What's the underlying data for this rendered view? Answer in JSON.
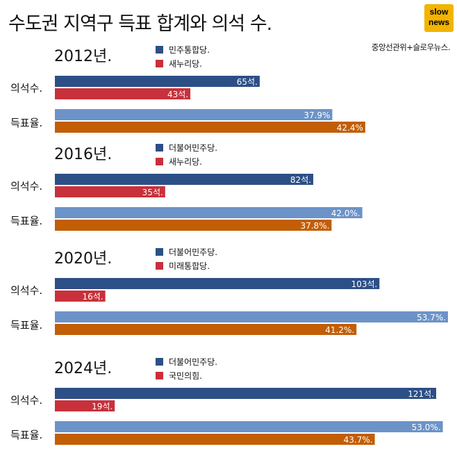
{
  "header": {
    "title": "수도권 지역구 득표 합계와 의석 수.",
    "source": "중앙선관위+슬로우뉴스.",
    "logo_line1": "slow",
    "logo_line2": "news"
  },
  "colors": {
    "seat_party1": "#2c4f86",
    "seat_party2": "#c8313b",
    "vote_party1": "#6c93c8",
    "vote_party2": "#c25e06"
  },
  "chart_data": {
    "type": "bar",
    "orientation": "horizontal",
    "title": "수도권 지역구 득표 합계와 의석 수.",
    "row_labels": [
      "의석수.",
      "득표율."
    ],
    "panels": [
      {
        "year": "2012년.",
        "legend": [
          "민주통합당.",
          "새누리당."
        ],
        "seats": {
          "values": [
            65,
            43
          ],
          "labels": [
            "65석.",
            "43석."
          ]
        },
        "votes": {
          "values": [
            37.9,
            42.4
          ],
          "labels": [
            "37.9%",
            "42.4%"
          ]
        }
      },
      {
        "year": "2016년.",
        "legend": [
          "더불어민주당.",
          "새누리당."
        ],
        "seats": {
          "values": [
            82,
            35
          ],
          "labels": [
            "82석.",
            "35석."
          ]
        },
        "votes": {
          "values": [
            42.0,
            37.8
          ],
          "labels": [
            "42.0%.",
            "37.8%."
          ]
        }
      },
      {
        "year": "2020년.",
        "legend": [
          "더불어민주당.",
          "미래통합당."
        ],
        "seats": {
          "values": [
            103,
            16
          ],
          "labels": [
            "103석.",
            "16석."
          ]
        },
        "votes": {
          "values": [
            53.7,
            41.2
          ],
          "labels": [
            "53.7%.",
            "41.2%."
          ]
        }
      },
      {
        "year": "2024년.",
        "legend": [
          "더불어민주당.",
          "국민의힘."
        ],
        "seats": {
          "values": [
            121,
            19
          ],
          "labels": [
            "121석.",
            "19석."
          ]
        },
        "votes": {
          "values": [
            53.0,
            43.7
          ],
          "labels": [
            "53.0%.",
            "43.7%."
          ]
        }
      }
    ]
  }
}
